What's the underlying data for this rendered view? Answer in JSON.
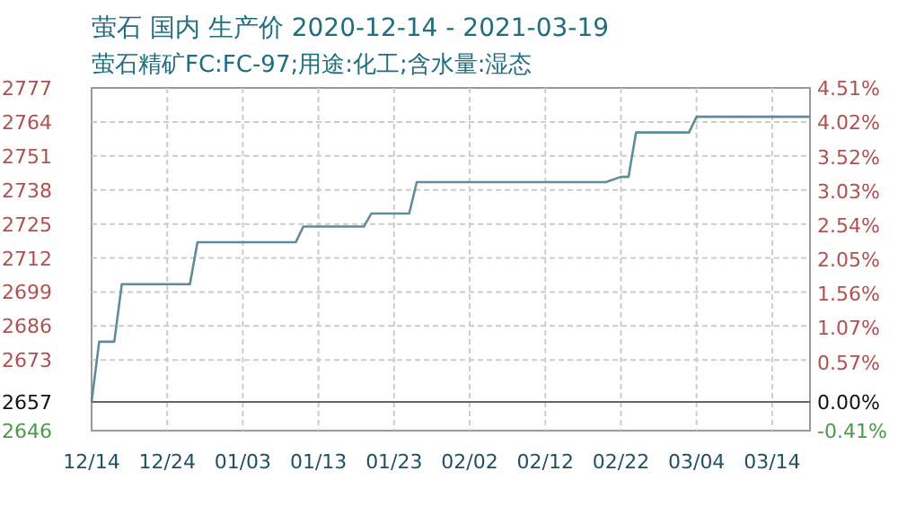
{
  "chart_data": {
    "type": "line",
    "title": "萤石 国内 生产价 2020-12-14 - 2021-03-19",
    "subtitle": "萤石精矿FC:FC-97;用途:化工;含水量:湿态",
    "x": [
      "2020-12-14",
      "2020-12-15",
      "2020-12-17",
      "2020-12-18",
      "2020-12-27",
      "2020-12-28",
      "2021-01-10",
      "2021-01-11",
      "2021-01-19",
      "2021-01-20",
      "2021-01-25",
      "2021-01-26",
      "2021-02-20",
      "2021-02-22",
      "2021-02-23",
      "2021-02-24",
      "2021-03-03",
      "2021-03-04",
      "2021-03-19"
    ],
    "series": [
      {
        "color": "#5e8c9a",
        "values": [
          2657,
          2680,
          2680,
          2702,
          2702,
          2718,
          2718,
          2724,
          2724,
          2729,
          2729,
          2741,
          2741,
          2743,
          2743,
          2760,
          2760,
          2766,
          2766
        ]
      }
    ],
    "xlim": [
      "2020-12-14",
      "2021-03-19"
    ],
    "xticks": [
      {
        "value": "2020-12-14",
        "label": "12/14"
      },
      {
        "value": "2020-12-24",
        "label": "12/24"
      },
      {
        "value": "2021-01-03",
        "label": "01/03"
      },
      {
        "value": "2021-01-13",
        "label": "01/13"
      },
      {
        "value": "2021-01-23",
        "label": "01/23"
      },
      {
        "value": "2021-02-02",
        "label": "02/02"
      },
      {
        "value": "2021-02-12",
        "label": "02/12"
      },
      {
        "value": "2021-02-22",
        "label": "02/22"
      },
      {
        "value": "2021-03-04",
        "label": "03/04"
      },
      {
        "value": "2021-03-14",
        "label": "03/14"
      }
    ],
    "ylim": [
      2646,
      2777
    ],
    "yticks": [
      2646,
      2657,
      2673,
      2686,
      2699,
      2712,
      2725,
      2738,
      2751,
      2764,
      2777
    ],
    "y2lim": [
      -0.41,
      4.51
    ],
    "y2ticks": [
      {
        "value": -0.41,
        "label": "-0.41%"
      },
      {
        "value": 0,
        "label": "0.00%"
      },
      {
        "value": 0.57,
        "label": "0.57%"
      },
      {
        "value": 1.07,
        "label": "1.07%"
      },
      {
        "value": 1.56,
        "label": "1.56%"
      },
      {
        "value": 2.05,
        "label": "2.05%"
      },
      {
        "value": 2.54,
        "label": "2.54%"
      },
      {
        "value": 3.03,
        "label": "3.03%"
      },
      {
        "value": 3.52,
        "label": "3.52%"
      },
      {
        "value": 4.02,
        "label": "4.02%"
      },
      {
        "value": 4.51,
        "label": "4.51%"
      }
    ],
    "ref_lines": [
      {
        "axis": "y",
        "value": 2657,
        "color": "#666666"
      }
    ],
    "grid": true,
    "line_style": "solid",
    "marker": "none"
  }
}
